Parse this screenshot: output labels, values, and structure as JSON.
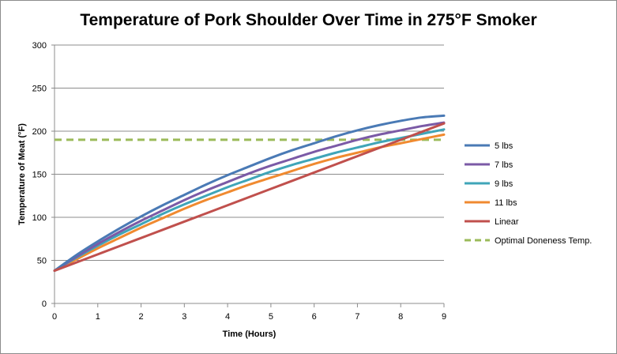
{
  "chart_data": {
    "type": "line",
    "title": "Temperature of Pork Shoulder Over Time in 275°F Smoker",
    "xlabel": "Time (Hours)",
    "ylabel": "Temperature of Meat (°F)",
    "xlim": [
      0,
      9
    ],
    "ylim": [
      0,
      300
    ],
    "xticks": [
      "0",
      "1",
      "2",
      "3",
      "4",
      "5",
      "6",
      "7",
      "8",
      "9"
    ],
    "yticks": [
      "0",
      "50",
      "100",
      "150",
      "200",
      "250",
      "300"
    ],
    "grid": "horizontal",
    "legend_position": "right",
    "x": [
      0,
      0.5,
      1,
      1.5,
      2,
      2.5,
      3,
      3.5,
      4,
      4.5,
      5,
      5.5,
      6,
      6.5,
      7,
      7.5,
      8,
      8.5,
      9
    ],
    "series": [
      {
        "name": "5 lbs",
        "color": "#4a7ab5",
        "style": "solid",
        "values": [
          38,
          56,
          72,
          87,
          101,
          114,
          126,
          138,
          149,
          159,
          169,
          178,
          186,
          194,
          201,
          207,
          212,
          216,
          218
        ]
      },
      {
        "name": "7 lbs",
        "color": "#7b5aa6",
        "style": "solid",
        "values": [
          38,
          54,
          69,
          83,
          96,
          108,
          120,
          131,
          141,
          151,
          160,
          168,
          176,
          183,
          190,
          196,
          201,
          206,
          210
        ]
      },
      {
        "name": "9 lbs",
        "color": "#3fa5b8",
        "style": "solid",
        "values": [
          38,
          53,
          67,
          80,
          92,
          104,
          115,
          125,
          135,
          144,
          153,
          161,
          168,
          175,
          181,
          187,
          192,
          197,
          202
        ]
      },
      {
        "name": "11 lbs",
        "color": "#f08a30",
        "style": "solid",
        "values": [
          38,
          51,
          64,
          76,
          88,
          99,
          110,
          120,
          129,
          138,
          146,
          154,
          162,
          169,
          175,
          181,
          186,
          191,
          196
        ]
      },
      {
        "name": "Linear",
        "color": "#c0504d",
        "style": "solid",
        "values": [
          38,
          47.5,
          57,
          66.5,
          76,
          85.5,
          95,
          104.5,
          114,
          123.5,
          133,
          142.5,
          152,
          161.5,
          171,
          180.5,
          190,
          199.5,
          209
        ]
      },
      {
        "name": "Optimal Doneness Temp.",
        "color": "#9bbb59",
        "style": "dashed",
        "values": [
          190,
          190,
          190,
          190,
          190,
          190,
          190,
          190,
          190,
          190,
          190,
          190,
          190,
          190,
          190,
          190,
          190,
          190,
          190
        ]
      }
    ]
  }
}
